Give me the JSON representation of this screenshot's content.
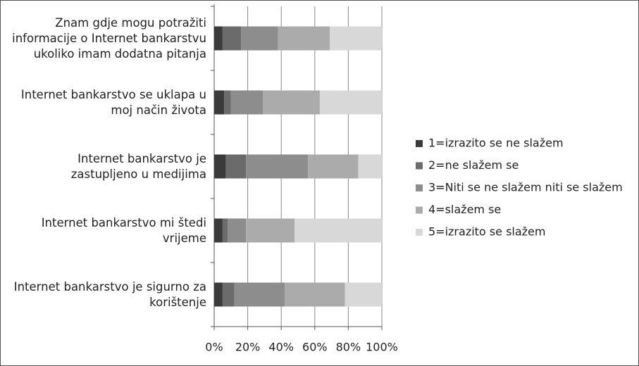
{
  "chart_data": {
    "type": "stacked-bar-horizontal",
    "categories": [
      "Znam gdje mogu potražiti informacije o Internet bankarstvu ukoliko imam dodatna pitanja",
      "Internet bankarstvo se uklapa u moj način života",
      "Internet bankarstvo je zastupljeno u medijima",
      "Internet bankarstvo mi štedi vrijeme",
      "Internet bankarstvo je sigurno za korištenje"
    ],
    "series": [
      {
        "name": "1=izrazito se ne slažem",
        "color": "#3a3a3a",
        "values": [
          5,
          6,
          7,
          5,
          5
        ]
      },
      {
        "name": "2=ne slažem se",
        "color": "#6b6b6b",
        "values": [
          11,
          4,
          12,
          3,
          7
        ]
      },
      {
        "name": "3=Niti se ne slažem niti se slažem",
        "color": "#8d8d8d",
        "values": [
          22,
          19,
          37,
          11,
          30
        ]
      },
      {
        "name": "4=slažem se",
        "color": "#ababab",
        "values": [
          31,
          34,
          30,
          29,
          36
        ]
      },
      {
        "name": "5=izrazito se slažem",
        "color": "#d8d8d8",
        "values": [
          31,
          37,
          14,
          52,
          22
        ]
      }
    ],
    "xlim": [
      0,
      100
    ],
    "xticks": [
      {
        "value": 0,
        "label": "0%"
      },
      {
        "value": 20,
        "label": "20%"
      },
      {
        "value": 40,
        "label": "40%"
      },
      {
        "value": 60,
        "label": "60%"
      },
      {
        "value": 80,
        "label": "80%"
      },
      {
        "value": 100,
        "label": "100%"
      }
    ],
    "grid": true,
    "legend": "right"
  }
}
